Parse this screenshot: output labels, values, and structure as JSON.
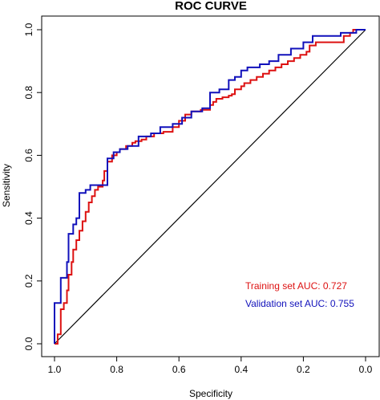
{
  "chart_data": {
    "type": "line",
    "title": "ROC CURVE",
    "xlabel": "Specificity",
    "ylabel": "Sensitivity",
    "xlim": [
      1.0,
      0.0
    ],
    "ylim": [
      0.0,
      1.0
    ],
    "x_ticks": [
      "1.0",
      "0.8",
      "0.6",
      "0.4",
      "0.2",
      "0.0"
    ],
    "x_tick_values": [
      1.0,
      0.8,
      0.6,
      0.4,
      0.2,
      0.0
    ],
    "y_ticks": [
      "0.0",
      "0.2",
      "0.4",
      "0.6",
      "0.8",
      "1.0"
    ],
    "y_tick_values": [
      0.0,
      0.2,
      0.4,
      0.6,
      0.8,
      1.0
    ],
    "grid": false,
    "diagonal_reference": true,
    "legend_position": "bottom-right",
    "series": [
      {
        "name": "Training set AUC: 0.727",
        "color": "#dd1111",
        "points": [
          [
            1.0,
            0.0
          ],
          [
            0.99,
            0.0
          ],
          [
            0.99,
            0.03
          ],
          [
            0.98,
            0.03
          ],
          [
            0.98,
            0.11
          ],
          [
            0.97,
            0.11
          ],
          [
            0.97,
            0.13
          ],
          [
            0.96,
            0.13
          ],
          [
            0.96,
            0.17
          ],
          [
            0.955,
            0.17
          ],
          [
            0.955,
            0.22
          ],
          [
            0.945,
            0.22
          ],
          [
            0.945,
            0.26
          ],
          [
            0.94,
            0.26
          ],
          [
            0.94,
            0.3
          ],
          [
            0.93,
            0.3
          ],
          [
            0.93,
            0.33
          ],
          [
            0.92,
            0.33
          ],
          [
            0.92,
            0.36
          ],
          [
            0.91,
            0.36
          ],
          [
            0.91,
            0.39
          ],
          [
            0.9,
            0.39
          ],
          [
            0.9,
            0.42
          ],
          [
            0.89,
            0.42
          ],
          [
            0.89,
            0.45
          ],
          [
            0.88,
            0.45
          ],
          [
            0.88,
            0.47
          ],
          [
            0.87,
            0.47
          ],
          [
            0.87,
            0.49
          ],
          [
            0.86,
            0.49
          ],
          [
            0.86,
            0.5
          ],
          [
            0.845,
            0.5
          ],
          [
            0.845,
            0.52
          ],
          [
            0.84,
            0.52
          ],
          [
            0.84,
            0.55
          ],
          [
            0.83,
            0.55
          ],
          [
            0.83,
            0.58
          ],
          [
            0.815,
            0.58
          ],
          [
            0.815,
            0.6
          ],
          [
            0.8,
            0.6
          ],
          [
            0.8,
            0.61
          ],
          [
            0.79,
            0.61
          ],
          [
            0.79,
            0.62
          ],
          [
            0.77,
            0.62
          ],
          [
            0.77,
            0.63
          ],
          [
            0.75,
            0.63
          ],
          [
            0.75,
            0.64
          ],
          [
            0.74,
            0.64
          ],
          [
            0.74,
            0.645
          ],
          [
            0.72,
            0.645
          ],
          [
            0.72,
            0.65
          ],
          [
            0.705,
            0.65
          ],
          [
            0.705,
            0.66
          ],
          [
            0.68,
            0.66
          ],
          [
            0.68,
            0.67
          ],
          [
            0.65,
            0.67
          ],
          [
            0.65,
            0.675
          ],
          [
            0.62,
            0.675
          ],
          [
            0.62,
            0.69
          ],
          [
            0.6,
            0.69
          ],
          [
            0.6,
            0.71
          ],
          [
            0.58,
            0.71
          ],
          [
            0.58,
            0.73
          ],
          [
            0.56,
            0.73
          ],
          [
            0.56,
            0.74
          ],
          [
            0.53,
            0.74
          ],
          [
            0.53,
            0.745
          ],
          [
            0.5,
            0.745
          ],
          [
            0.5,
            0.76
          ],
          [
            0.49,
            0.76
          ],
          [
            0.49,
            0.77
          ],
          [
            0.48,
            0.77
          ],
          [
            0.48,
            0.78
          ],
          [
            0.46,
            0.78
          ],
          [
            0.46,
            0.785
          ],
          [
            0.44,
            0.785
          ],
          [
            0.44,
            0.79
          ],
          [
            0.43,
            0.79
          ],
          [
            0.43,
            0.795
          ],
          [
            0.42,
            0.795
          ],
          [
            0.42,
            0.81
          ],
          [
            0.4,
            0.81
          ],
          [
            0.4,
            0.82
          ],
          [
            0.39,
            0.82
          ],
          [
            0.39,
            0.83
          ],
          [
            0.37,
            0.83
          ],
          [
            0.37,
            0.84
          ],
          [
            0.35,
            0.84
          ],
          [
            0.35,
            0.85
          ],
          [
            0.33,
            0.85
          ],
          [
            0.33,
            0.86
          ],
          [
            0.31,
            0.86
          ],
          [
            0.31,
            0.87
          ],
          [
            0.29,
            0.87
          ],
          [
            0.29,
            0.88
          ],
          [
            0.27,
            0.88
          ],
          [
            0.27,
            0.89
          ],
          [
            0.25,
            0.89
          ],
          [
            0.25,
            0.9
          ],
          [
            0.23,
            0.9
          ],
          [
            0.23,
            0.91
          ],
          [
            0.21,
            0.91
          ],
          [
            0.21,
            0.92
          ],
          [
            0.19,
            0.92
          ],
          [
            0.19,
            0.93
          ],
          [
            0.18,
            0.93
          ],
          [
            0.18,
            0.95
          ],
          [
            0.16,
            0.95
          ],
          [
            0.16,
            0.96
          ],
          [
            0.07,
            0.96
          ],
          [
            0.07,
            0.98
          ],
          [
            0.05,
            0.98
          ],
          [
            0.05,
            0.99
          ],
          [
            0.04,
            0.99
          ],
          [
            0.04,
            1.0
          ],
          [
            0.0,
            1.0
          ]
        ]
      },
      {
        "name": "Validation set AUC: 0.755",
        "color": "#1111bb",
        "points": [
          [
            1.0,
            0.0
          ],
          [
            1.0,
            0.13
          ],
          [
            0.98,
            0.13
          ],
          [
            0.98,
            0.21
          ],
          [
            0.96,
            0.21
          ],
          [
            0.96,
            0.26
          ],
          [
            0.955,
            0.26
          ],
          [
            0.955,
            0.35
          ],
          [
            0.94,
            0.35
          ],
          [
            0.94,
            0.38
          ],
          [
            0.93,
            0.38
          ],
          [
            0.93,
            0.4
          ],
          [
            0.92,
            0.4
          ],
          [
            0.92,
            0.48
          ],
          [
            0.9,
            0.48
          ],
          [
            0.9,
            0.49
          ],
          [
            0.885,
            0.49
          ],
          [
            0.885,
            0.505
          ],
          [
            0.83,
            0.505
          ],
          [
            0.83,
            0.59
          ],
          [
            0.81,
            0.59
          ],
          [
            0.81,
            0.61
          ],
          [
            0.79,
            0.61
          ],
          [
            0.79,
            0.62
          ],
          [
            0.765,
            0.62
          ],
          [
            0.765,
            0.63
          ],
          [
            0.73,
            0.63
          ],
          [
            0.73,
            0.66
          ],
          [
            0.69,
            0.66
          ],
          [
            0.69,
            0.67
          ],
          [
            0.66,
            0.67
          ],
          [
            0.66,
            0.69
          ],
          [
            0.62,
            0.69
          ],
          [
            0.62,
            0.7
          ],
          [
            0.59,
            0.7
          ],
          [
            0.59,
            0.72
          ],
          [
            0.56,
            0.72
          ],
          [
            0.56,
            0.74
          ],
          [
            0.525,
            0.74
          ],
          [
            0.525,
            0.75
          ],
          [
            0.5,
            0.75
          ],
          [
            0.5,
            0.8
          ],
          [
            0.47,
            0.8
          ],
          [
            0.47,
            0.81
          ],
          [
            0.44,
            0.81
          ],
          [
            0.44,
            0.84
          ],
          [
            0.42,
            0.84
          ],
          [
            0.42,
            0.85
          ],
          [
            0.4,
            0.85
          ],
          [
            0.4,
            0.87
          ],
          [
            0.38,
            0.87
          ],
          [
            0.38,
            0.88
          ],
          [
            0.34,
            0.88
          ],
          [
            0.34,
            0.89
          ],
          [
            0.31,
            0.89
          ],
          [
            0.31,
            0.9
          ],
          [
            0.28,
            0.9
          ],
          [
            0.28,
            0.92
          ],
          [
            0.24,
            0.92
          ],
          [
            0.24,
            0.94
          ],
          [
            0.2,
            0.94
          ],
          [
            0.2,
            0.96
          ],
          [
            0.17,
            0.96
          ],
          [
            0.17,
            0.98
          ],
          [
            0.08,
            0.98
          ],
          [
            0.08,
            0.99
          ],
          [
            0.03,
            0.99
          ],
          [
            0.03,
            1.0
          ],
          [
            0.0,
            1.0
          ]
        ]
      }
    ]
  }
}
